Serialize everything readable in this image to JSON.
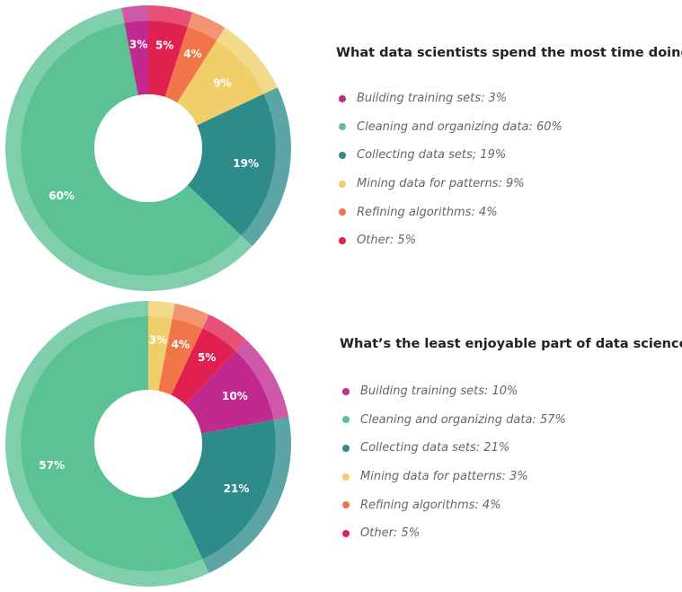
{
  "colors": {
    "building": "#c2298f",
    "cleaning": "#5bc295",
    "collecting": "#2d8c8a",
    "mining": "#f0cf6a",
    "refining": "#f0764a",
    "other": "#e0204f"
  },
  "chart_data": [
    {
      "type": "pie",
      "title": "What data scientists spend the most time doing",
      "slices": [
        {
          "label": "Other",
          "value": 5,
          "color_key": "other",
          "value_text": "5%",
          "legend_text": "Other: 5%"
        },
        {
          "label": "Refining algorithms",
          "value": 4,
          "color_key": "refining",
          "value_text": "4%",
          "legend_text": "Refining algorithms: 4%"
        },
        {
          "label": "Mining data for patterns",
          "value": 9,
          "color_key": "mining",
          "value_text": "9%",
          "legend_text": "Mining data for patterns: 9%"
        },
        {
          "label": "Collecting data sets",
          "value": 19,
          "color_key": "collecting",
          "value_text": "19%",
          "legend_text": "Collecting data sets; 19%"
        },
        {
          "label": "Cleaning and organizing data",
          "value": 60,
          "color_key": "cleaning",
          "value_text": "60%",
          "legend_text": "Cleaning and organizing data: 60%"
        },
        {
          "label": "Building training sets",
          "value": 3,
          "color_key": "building",
          "value_text": "3%",
          "legend_text": "Building training sets: 3%"
        }
      ],
      "legend_order": [
        "building",
        "cleaning",
        "collecting",
        "mining",
        "refining",
        "other"
      ]
    },
    {
      "type": "pie",
      "title": "What’s the least enjoyable part of data science?",
      "slices": [
        {
          "label": "Mining data for patterns",
          "value": 3,
          "color_key": "mining",
          "value_text": "3%",
          "legend_text": "Mining data for patterns: 3%"
        },
        {
          "label": "Refining algorithms",
          "value": 4,
          "color_key": "refining",
          "value_text": "4%",
          "legend_text": "Refining algorithms: 4%"
        },
        {
          "label": "Other",
          "value": 5,
          "color_key": "other",
          "value_text": "5%",
          "legend_text": "Other: 5%"
        },
        {
          "label": "Building training sets",
          "value": 10,
          "color_key": "building",
          "value_text": "10%",
          "legend_text": "Building training sets: 10%"
        },
        {
          "label": "Collecting data sets",
          "value": 21,
          "color_key": "collecting",
          "value_text": "21%",
          "legend_text": "Collecting data sets: 21%"
        },
        {
          "label": "Cleaning and organizing data",
          "value": 57,
          "color_key": "cleaning",
          "value_text": "57%",
          "legend_text": "Cleaning and organizing data: 57%"
        }
      ],
      "legend_order": [
        "building",
        "cleaning",
        "collecting",
        "mining",
        "refining",
        "other"
      ]
    }
  ]
}
